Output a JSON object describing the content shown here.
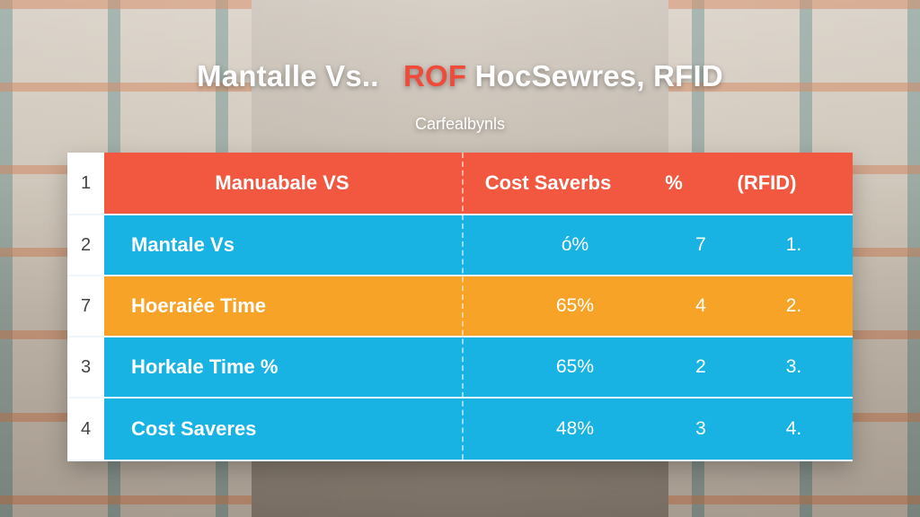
{
  "title": {
    "part1": "Mantalle Vs..",
    "part2": "ROF",
    "part3": "HocSewres, RFID"
  },
  "subtitle": "Carfealbynls",
  "table": {
    "header": {
      "num": "1",
      "c1": "Manuabale VS",
      "c2": "Cost Saverbs",
      "c3": "%",
      "c4": "(RFID)"
    },
    "rows": [
      {
        "num": "2",
        "c1": "Mantale Vs",
        "c2": "ó%",
        "c3": "7",
        "c4": "1.",
        "theme": "blue"
      },
      {
        "num": "7",
        "c1": "Hoeraiée Time",
        "c2": "65%",
        "c3": "4",
        "c4": "2.",
        "theme": "orange"
      },
      {
        "num": "3",
        "c1": "Horkale Time %",
        "c2": "65%",
        "c3": "2",
        "c4": "3.",
        "theme": "blue"
      },
      {
        "num": "4",
        "c1": "Cost Saveres",
        "c2": "48%",
        "c3": "3",
        "c4": "4.",
        "theme": "blue"
      }
    ]
  },
  "colors": {
    "header": "#f1583f",
    "blue": "#19b3e3",
    "orange": "#f6a328",
    "title_accent": "#ef4b3b"
  }
}
